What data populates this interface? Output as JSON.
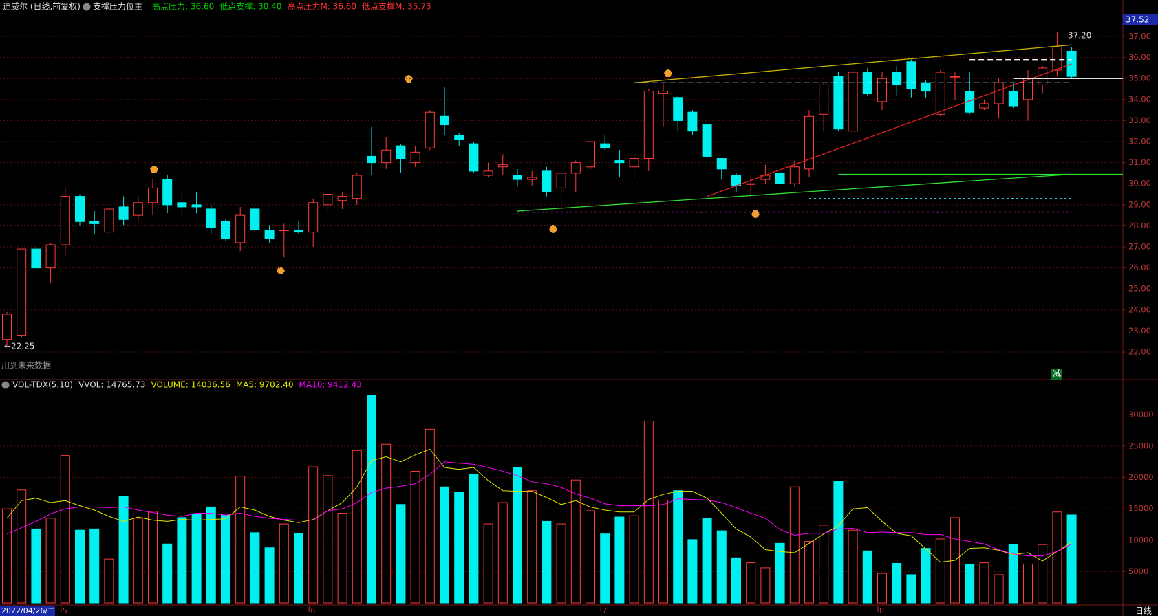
{
  "title": "迪威尔 (日线,前复权)",
  "indicator": "支撑压力位主",
  "indicator_values": [
    {
      "text": "高点压力: 36.60",
      "color": "#00d000"
    },
    {
      "text": "低点支撑: 30.40",
      "color": "#00d000"
    },
    {
      "text": "高点压力M: 36.60",
      "color": "#ff3030"
    },
    {
      "text": "低点支撑M: 35.73",
      "color": "#ff3030"
    }
  ],
  "axis_highlight": "37.52",
  "max_label": "37.20",
  "min_label": "←22.25",
  "future_note": "用到未来数据",
  "signal": "减",
  "period": "日线",
  "volume_header": [
    {
      "text": "VOL-TDX(5,10)",
      "color": "#dddddd"
    },
    {
      "text": "VVOL: 14765.73",
      "color": "#dddddd"
    },
    {
      "text": "VOLUME: 14036.56",
      "color": "#e8e800"
    },
    {
      "text": "MA5: 9702.40",
      "color": "#e8e800"
    },
    {
      "text": "MA10: 9412.43",
      "color": "#ff00ff"
    }
  ],
  "chart_data": [
    {
      "type": "candlestick",
      "up_color": "#ff3c3c",
      "down_color": "#00f0f0",
      "grid": true,
      "categories": [
        "2022/04/26/二",
        null,
        null,
        null,
        "5",
        null,
        null,
        null,
        null,
        null,
        null,
        null,
        null,
        null,
        null,
        null,
        null,
        null,
        null,
        null,
        null,
        "6",
        null,
        null,
        null,
        null,
        null,
        null,
        null,
        null,
        null,
        null,
        null,
        null,
        null,
        null,
        null,
        null,
        null,
        null,
        null,
        "7",
        null,
        null,
        null,
        null,
        null,
        null,
        null,
        null,
        null,
        null,
        null,
        null,
        null,
        null,
        null,
        null,
        null,
        null,
        "8",
        null,
        null,
        null,
        null,
        null,
        null,
        null,
        null,
        null,
        null,
        null,
        null,
        null
      ],
      "open": [
        22.6,
        22.8,
        26.9,
        26.0,
        27.1,
        29.4,
        28.2,
        27.7,
        28.9,
        28.5,
        29.1,
        30.2,
        29.1,
        29.0,
        28.8,
        28.2,
        27.2,
        28.8,
        27.8,
        27.8,
        27.8,
        27.7,
        29.0,
        29.2,
        29.3,
        31.3,
        31.0,
        31.8,
        31.0,
        31.7,
        33.2,
        32.3,
        31.9,
        30.4,
        30.8,
        30.4,
        30.2,
        30.6,
        29.8,
        30.5,
        30.8,
        31.9,
        31.1,
        30.8,
        31.2,
        34.3,
        34.1,
        33.4,
        32.8,
        31.2,
        30.4,
        30.0,
        30.2,
        30.5,
        30.0,
        30.7,
        33.3,
        35.1,
        32.5,
        35.3,
        33.9,
        35.3,
        35.8,
        34.8,
        33.3,
        35.1,
        34.4,
        33.6,
        33.8,
        34.4,
        34.0,
        34.7,
        35.4,
        36.3
      ],
      "high": [
        23.9,
        26.9,
        27.0,
        27.2,
        29.8,
        29.5,
        28.7,
        28.9,
        29.4,
        29.4,
        30.2,
        30.4,
        29.7,
        29.6,
        29.0,
        28.3,
        28.9,
        29.0,
        28.0,
        28.1,
        28.2,
        29.3,
        29.5,
        29.6,
        30.5,
        32.7,
        32.2,
        31.9,
        31.8,
        33.5,
        34.6,
        32.4,
        32.0,
        31.0,
        31.4,
        30.7,
        30.6,
        30.8,
        30.6,
        31.1,
        32.0,
        32.3,
        31.6,
        31.6,
        34.5,
        34.8,
        34.2,
        33.5,
        32.8,
        31.2,
        30.5,
        30.4,
        30.9,
        30.6,
        31.1,
        33.5,
        34.8,
        35.3,
        35.5,
        35.5,
        35.3,
        35.6,
        35.9,
        34.9,
        35.4,
        35.3,
        35.3,
        34.0,
        35.0,
        34.8,
        35.4,
        35.6,
        37.2,
        36.5
      ],
      "low": [
        22.25,
        22.7,
        25.9,
        25.3,
        26.6,
        28.0,
        27.6,
        27.5,
        28.0,
        28.2,
        28.5,
        28.6,
        28.5,
        28.6,
        27.6,
        27.3,
        26.8,
        27.7,
        27.2,
        26.5,
        27.6,
        27.0,
        28.7,
        28.8,
        29.0,
        30.4,
        30.7,
        30.5,
        30.8,
        31.6,
        32.3,
        31.8,
        30.5,
        30.3,
        30.4,
        29.9,
        29.9,
        29.4,
        28.7,
        29.6,
        30.7,
        31.6,
        30.3,
        30.2,
        30.6,
        32.7,
        32.5,
        32.3,
        31.2,
        30.2,
        29.6,
        29.4,
        30.0,
        29.9,
        29.9,
        30.3,
        32.5,
        32.5,
        32.5,
        34.2,
        33.5,
        34.2,
        34.1,
        34.1,
        33.2,
        34.0,
        33.3,
        33.5,
        33.1,
        33.6,
        33.0,
        34.3,
        35.1,
        35.0
      ],
      "close": [
        23.8,
        26.9,
        26.0,
        27.1,
        29.4,
        28.2,
        28.1,
        28.8,
        28.3,
        29.1,
        29.8,
        29.0,
        28.9,
        28.9,
        27.9,
        27.4,
        28.5,
        27.8,
        27.4,
        27.8,
        27.7,
        29.1,
        29.5,
        29.4,
        30.4,
        31.0,
        31.6,
        31.2,
        31.5,
        33.4,
        32.8,
        32.1,
        30.6,
        30.6,
        30.9,
        30.2,
        30.3,
        29.6,
        30.5,
        31.0,
        32.0,
        31.7,
        31.0,
        31.2,
        34.4,
        34.4,
        33.0,
        32.5,
        31.3,
        30.7,
        29.9,
        30.0,
        30.4,
        30.0,
        30.8,
        33.2,
        34.7,
        32.6,
        35.3,
        34.3,
        35.0,
        34.7,
        34.5,
        34.4,
        35.3,
        35.1,
        33.4,
        33.8,
        34.8,
        33.7,
        35.0,
        35.5,
        36.5,
        35.1
      ],
      "lines": [
        {
          "color": "#c8b400",
          "dash": "",
          "x": [
            43,
            73
          ],
          "y": [
            34.8,
            36.6
          ]
        },
        {
          "color": "#30e030",
          "dash": "",
          "x": [
            35,
            73
          ],
          "y": [
            28.7,
            30.45
          ]
        },
        {
          "color": "#30e030",
          "dash": "",
          "x": [
            57,
            76.5
          ],
          "y": [
            30.45,
            30.45
          ]
        },
        {
          "color": "#e02020",
          "dash": "",
          "x": [
            48,
            73
          ],
          "y": [
            29.4,
            35.7
          ]
        },
        {
          "color": "#ffffff",
          "dash": "8 5",
          "x": [
            43,
            73
          ],
          "y": [
            34.8,
            34.8
          ]
        },
        {
          "color": "#ffffff",
          "dash": "8 5",
          "x": [
            66,
            73
          ],
          "y": [
            35.9,
            35.9
          ]
        },
        {
          "color": "#ffffff",
          "dash": "",
          "x": [
            69,
            76.5
          ],
          "y": [
            35.0,
            35.0
          ]
        },
        {
          "color": "#30d0d0",
          "dash": "3 4",
          "x": [
            55,
            73
          ],
          "y": [
            29.3,
            29.3
          ]
        },
        {
          "color": "#e040e0",
          "dash": "3 4",
          "x": [
            35,
            73
          ],
          "y": [
            28.65,
            28.65
          ]
        }
      ],
      "ylim": [
        20.76,
        38.21
      ],
      "yticks": [
        {
          "value": 22,
          "label": "22.00"
        },
        {
          "value": 23,
          "label": "23.00"
        },
        {
          "value": 24,
          "label": "24.00"
        },
        {
          "value": 25,
          "label": "25.00"
        },
        {
          "value": 26,
          "label": "26.00"
        },
        {
          "value": 27,
          "label": "27.00"
        },
        {
          "value": 28,
          "label": "28.00"
        },
        {
          "value": 29,
          "label": "29.00"
        },
        {
          "value": 30,
          "label": "30.00"
        },
        {
          "value": 31,
          "label": "31.00"
        },
        {
          "value": 32,
          "label": "32.00"
        },
        {
          "value": 33,
          "label": "33.00"
        },
        {
          "value": 34,
          "label": "34.00"
        },
        {
          "value": 35,
          "label": "35.00"
        },
        {
          "value": 36,
          "label": "36.00"
        },
        {
          "value": 37,
          "label": "37.00"
        }
      ]
    },
    {
      "type": "bar",
      "up_color": "#ff3c3c",
      "down_color": "#00f0f0",
      "grid": true,
      "values": [
        15000,
        18000,
        11800,
        13500,
        23500,
        11600,
        11800,
        7000,
        17000,
        13500,
        14600,
        9400,
        13600,
        14200,
        15300,
        14000,
        20200,
        11200,
        8800,
        12600,
        11100,
        21700,
        20300,
        14300,
        24300,
        33100,
        25300,
        15700,
        21000,
        27700,
        18500,
        17700,
        20500,
        12600,
        16000,
        21600,
        17900,
        13000,
        12600,
        19600,
        14700,
        11000,
        13700,
        13900,
        29000,
        16400,
        17900,
        10100,
        13500,
        11500,
        7200,
        6400,
        5600,
        9500,
        18500,
        9800,
        12400,
        19400,
        11600,
        8300,
        4700,
        6300,
        4500,
        8700,
        10200,
        13600,
        6200,
        6400,
        4500,
        9300,
        6200,
        9300,
        14500,
        14036.56
      ],
      "series": [
        {
          "color": "#e8e800",
          "values": [
            13500,
            16300,
            16700,
            16000,
            16300,
            15500,
            14800,
            13800,
            13000,
            13700,
            13200,
            13000,
            13300,
            13200,
            13300,
            13400,
            15300,
            14800,
            13800,
            13200,
            12800,
            13300,
            14700,
            16000,
            18500,
            22700,
            23300,
            22500,
            23600,
            24500,
            21600,
            21300,
            21600,
            19500,
            17900,
            17800,
            17800,
            16800,
            15700,
            16300,
            15300,
            14800,
            14500,
            14500,
            16500,
            17300,
            17800,
            17800,
            16700,
            14300,
            11800,
            10500,
            8500,
            8200,
            8000,
            9500,
            11000,
            12300,
            15000,
            15200,
            13000,
            11100,
            10700,
            8600,
            6500,
            6800,
            8700,
            8800,
            8400,
            7700,
            8000,
            6700,
            8200,
            9702.4
          ]
        },
        {
          "color": "#ff00ff",
          "values": [
            11000,
            12000,
            13000,
            14200,
            15000,
            15300,
            15300,
            15200,
            15300,
            14800,
            14400,
            14000,
            13800,
            14300,
            14300,
            14000,
            14300,
            13800,
            13500,
            13300,
            13200,
            13200,
            14700,
            15000,
            16000,
            17600,
            18300,
            18600,
            19000,
            20500,
            22500,
            22300,
            22100,
            21600,
            21000,
            20300,
            19300,
            19000,
            18400,
            17400,
            16700,
            15800,
            15500,
            15500,
            15500,
            15700,
            16600,
            16500,
            16400,
            16000,
            15200,
            14300,
            13500,
            11700,
            10800,
            11100,
            11100,
            11800,
            11900,
            11200,
            11300,
            11200,
            11200,
            10900,
            10900,
            10200,
            9800,
            9400,
            8500,
            7800,
            7500,
            7500,
            8200,
            9412.43
          ]
        }
      ],
      "ylim": [
        0,
        35300
      ],
      "yticks": [
        5000,
        10000,
        15000,
        20000,
        25000,
        30000
      ]
    }
  ]
}
